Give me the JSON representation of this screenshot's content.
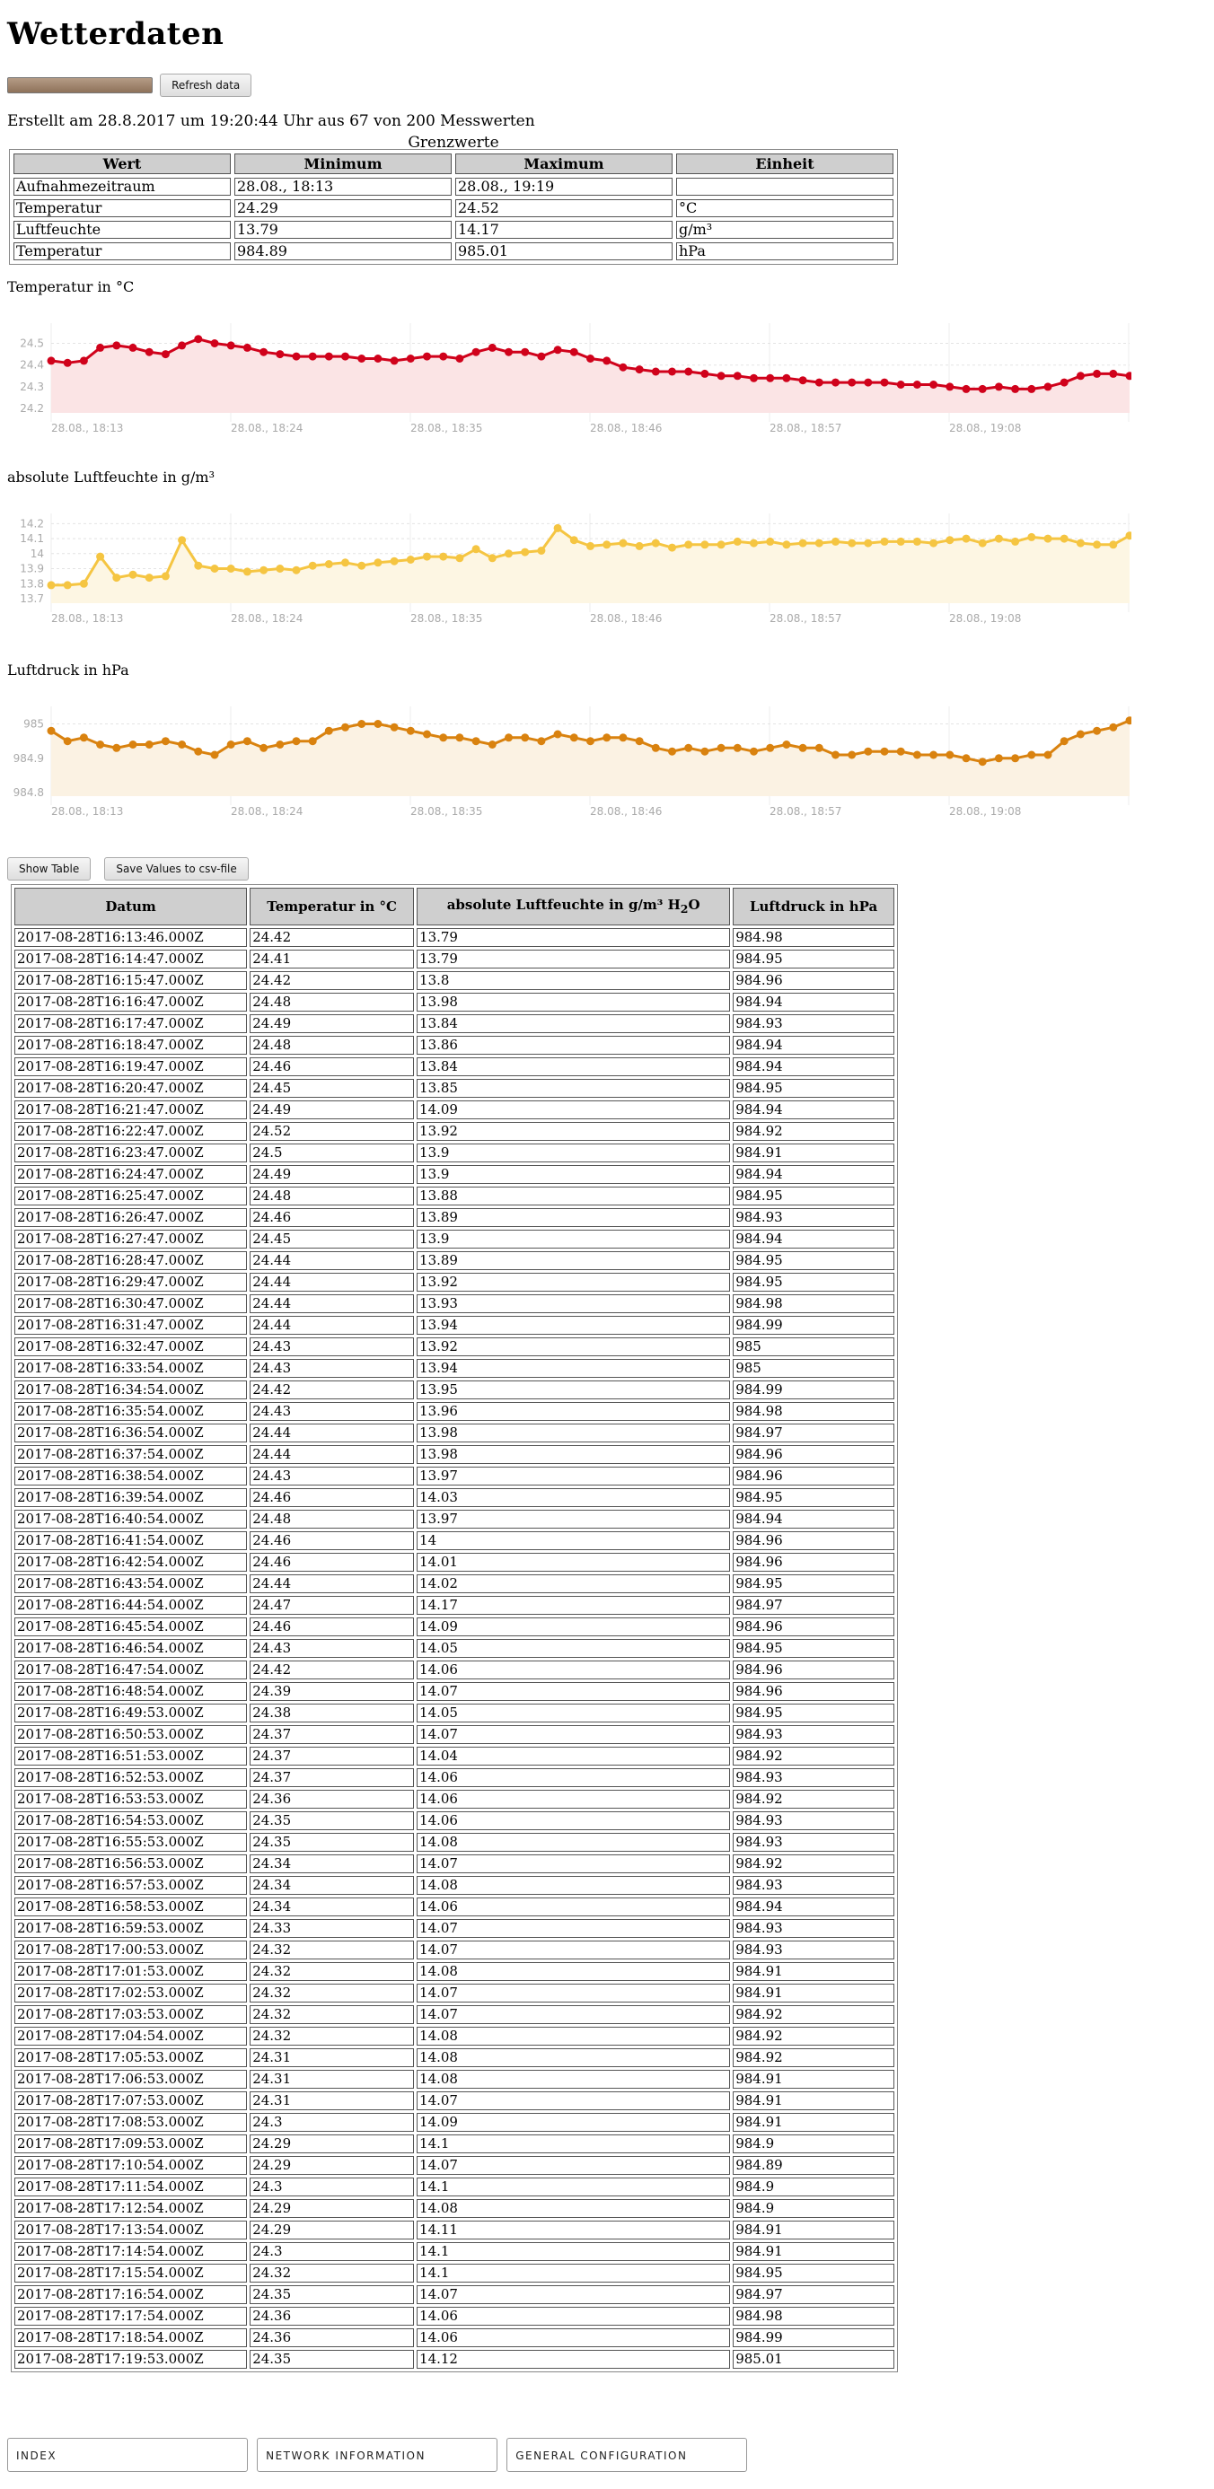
{
  "page": {
    "title": "Wetterdaten",
    "refresh_label": "Refresh data",
    "created": "Erstellt am 28.8.2017 um 19:20:44 Uhr aus 67 von 200 Messwerten"
  },
  "limits": {
    "caption": "Grenzwerte",
    "headers": [
      "Wert",
      "Minimum",
      "Maximum",
      "Einheit"
    ],
    "rows": [
      [
        "Aufnahmezeitraum",
        "28.08., 18:13",
        "28.08., 19:19",
        ""
      ],
      [
        "Temperatur",
        "24.29",
        "24.52",
        "°C"
      ],
      [
        "Luftfeuchte",
        "13.79",
        "14.17",
        "g/m³"
      ],
      [
        "Temperatur",
        "984.89",
        "985.01",
        "hPa"
      ]
    ]
  },
  "chart_data": [
    {
      "type": "line",
      "title": "Temperatur in °C",
      "color": "#d0021b",
      "fill": "#fbe4e5",
      "x_ticks": [
        "28.08., 18:13",
        "28.08., 18:24",
        "28.08., 18:35",
        "28.08., 18:46",
        "28.08., 18:57",
        "28.08., 19:08"
      ],
      "y_ticks": [
        "24.2",
        "24.3",
        "24.4",
        "24.5"
      ],
      "ylim": [
        24.18,
        24.56
      ],
      "grid": true,
      "legend": "none",
      "values": [
        24.42,
        24.41,
        24.42,
        24.48,
        24.49,
        24.48,
        24.46,
        24.45,
        24.49,
        24.52,
        24.5,
        24.49,
        24.48,
        24.46,
        24.45,
        24.44,
        24.44,
        24.44,
        24.44,
        24.43,
        24.43,
        24.42,
        24.43,
        24.44,
        24.44,
        24.43,
        24.46,
        24.48,
        24.46,
        24.46,
        24.44,
        24.47,
        24.46,
        24.43,
        24.42,
        24.39,
        24.38,
        24.37,
        24.37,
        24.37,
        24.36,
        24.35,
        24.35,
        24.34,
        24.34,
        24.34,
        24.33,
        24.32,
        24.32,
        24.32,
        24.32,
        24.32,
        24.31,
        24.31,
        24.31,
        24.3,
        24.29,
        24.29,
        24.3,
        24.29,
        24.29,
        24.3,
        24.32,
        24.35,
        24.36,
        24.36,
        24.35
      ]
    },
    {
      "type": "line",
      "title": "absolute Luftfeuchte in g/m³",
      "color": "#f5c542",
      "fill": "#fdf6e3",
      "x_ticks": [
        "28.08., 18:13",
        "28.08., 18:24",
        "28.08., 18:35",
        "28.08., 18:46",
        "28.08., 18:57",
        "28.08., 19:08"
      ],
      "y_ticks": [
        "13.7",
        "13.8",
        "13.9",
        "14",
        "14.1",
        "14.2"
      ],
      "ylim": [
        13.67,
        14.22
      ],
      "grid": true,
      "legend": "none",
      "values": [
        13.79,
        13.79,
        13.8,
        13.98,
        13.84,
        13.86,
        13.84,
        13.85,
        14.09,
        13.92,
        13.9,
        13.9,
        13.88,
        13.89,
        13.9,
        13.89,
        13.92,
        13.93,
        13.94,
        13.92,
        13.94,
        13.95,
        13.96,
        13.98,
        13.98,
        13.97,
        14.03,
        13.97,
        14,
        14.01,
        14.02,
        14.17,
        14.09,
        14.05,
        14.06,
        14.07,
        14.05,
        14.07,
        14.04,
        14.06,
        14.06,
        14.06,
        14.08,
        14.07,
        14.08,
        14.06,
        14.07,
        14.07,
        14.08,
        14.07,
        14.07,
        14.08,
        14.08,
        14.08,
        14.07,
        14.09,
        14.1,
        14.07,
        14.1,
        14.08,
        14.11,
        14.1,
        14.1,
        14.07,
        14.06,
        14.06,
        14.12
      ]
    },
    {
      "type": "line",
      "title": "Luftdruck in hPa",
      "color": "#d9820f",
      "fill": "#fbf2e3",
      "x_ticks": [
        "28.08., 18:13",
        "28.08., 18:24",
        "28.08., 18:35",
        "28.08., 18:46",
        "28.08., 18:57",
        "28.08., 19:08"
      ],
      "y_ticks": [
        "984.8",
        "984.9",
        "985"
      ],
      "ylim": [
        984.79,
        985.03
      ],
      "grid": true,
      "legend": "none",
      "values": [
        984.98,
        984.95,
        984.96,
        984.94,
        984.93,
        984.94,
        984.94,
        984.95,
        984.94,
        984.92,
        984.91,
        984.94,
        984.95,
        984.93,
        984.94,
        984.95,
        984.95,
        984.98,
        984.99,
        985,
        985,
        984.99,
        984.98,
        984.97,
        984.96,
        984.96,
        984.95,
        984.94,
        984.96,
        984.96,
        984.95,
        984.97,
        984.96,
        984.95,
        984.96,
        984.96,
        984.95,
        984.93,
        984.92,
        984.93,
        984.92,
        984.93,
        984.93,
        984.92,
        984.93,
        984.94,
        984.93,
        984.93,
        984.91,
        984.91,
        984.92,
        984.92,
        984.92,
        984.91,
        984.91,
        984.91,
        984.9,
        984.89,
        984.9,
        984.9,
        984.91,
        984.91,
        984.95,
        984.97,
        984.98,
        984.99,
        985.01
      ]
    }
  ],
  "actions": {
    "show_table": "Show Table",
    "save_csv": "Save Values to csv-file"
  },
  "table": {
    "headers": {
      "datum": "Datum",
      "temp": "Temperatur in °C",
      "humidity_pre": "absolute Luftfeuchte in g/m³ H",
      "humidity_sub": "2",
      "humidity_post": "O",
      "pressure": "Luftdruck in hPa"
    },
    "rows": [
      [
        "2017-08-28T16:13:46.000Z",
        "24.42",
        "13.79",
        "984.98"
      ],
      [
        "2017-08-28T16:14:47.000Z",
        "24.41",
        "13.79",
        "984.95"
      ],
      [
        "2017-08-28T16:15:47.000Z",
        "24.42",
        "13.8",
        "984.96"
      ],
      [
        "2017-08-28T16:16:47.000Z",
        "24.48",
        "13.98",
        "984.94"
      ],
      [
        "2017-08-28T16:17:47.000Z",
        "24.49",
        "13.84",
        "984.93"
      ],
      [
        "2017-08-28T16:18:47.000Z",
        "24.48",
        "13.86",
        "984.94"
      ],
      [
        "2017-08-28T16:19:47.000Z",
        "24.46",
        "13.84",
        "984.94"
      ],
      [
        "2017-08-28T16:20:47.000Z",
        "24.45",
        "13.85",
        "984.95"
      ],
      [
        "2017-08-28T16:21:47.000Z",
        "24.49",
        "14.09",
        "984.94"
      ],
      [
        "2017-08-28T16:22:47.000Z",
        "24.52",
        "13.92",
        "984.92"
      ],
      [
        "2017-08-28T16:23:47.000Z",
        "24.5",
        "13.9",
        "984.91"
      ],
      [
        "2017-08-28T16:24:47.000Z",
        "24.49",
        "13.9",
        "984.94"
      ],
      [
        "2017-08-28T16:25:47.000Z",
        "24.48",
        "13.88",
        "984.95"
      ],
      [
        "2017-08-28T16:26:47.000Z",
        "24.46",
        "13.89",
        "984.93"
      ],
      [
        "2017-08-28T16:27:47.000Z",
        "24.45",
        "13.9",
        "984.94"
      ],
      [
        "2017-08-28T16:28:47.000Z",
        "24.44",
        "13.89",
        "984.95"
      ],
      [
        "2017-08-28T16:29:47.000Z",
        "24.44",
        "13.92",
        "984.95"
      ],
      [
        "2017-08-28T16:30:47.000Z",
        "24.44",
        "13.93",
        "984.98"
      ],
      [
        "2017-08-28T16:31:47.000Z",
        "24.44",
        "13.94",
        "984.99"
      ],
      [
        "2017-08-28T16:32:47.000Z",
        "24.43",
        "13.92",
        "985"
      ],
      [
        "2017-08-28T16:33:54.000Z",
        "24.43",
        "13.94",
        "985"
      ],
      [
        "2017-08-28T16:34:54.000Z",
        "24.42",
        "13.95",
        "984.99"
      ],
      [
        "2017-08-28T16:35:54.000Z",
        "24.43",
        "13.96",
        "984.98"
      ],
      [
        "2017-08-28T16:36:54.000Z",
        "24.44",
        "13.98",
        "984.97"
      ],
      [
        "2017-08-28T16:37:54.000Z",
        "24.44",
        "13.98",
        "984.96"
      ],
      [
        "2017-08-28T16:38:54.000Z",
        "24.43",
        "13.97",
        "984.96"
      ],
      [
        "2017-08-28T16:39:54.000Z",
        "24.46",
        "14.03",
        "984.95"
      ],
      [
        "2017-08-28T16:40:54.000Z",
        "24.48",
        "13.97",
        "984.94"
      ],
      [
        "2017-08-28T16:41:54.000Z",
        "24.46",
        "14",
        "984.96"
      ],
      [
        "2017-08-28T16:42:54.000Z",
        "24.46",
        "14.01",
        "984.96"
      ],
      [
        "2017-08-28T16:43:54.000Z",
        "24.44",
        "14.02",
        "984.95"
      ],
      [
        "2017-08-28T16:44:54.000Z",
        "24.47",
        "14.17",
        "984.97"
      ],
      [
        "2017-08-28T16:45:54.000Z",
        "24.46",
        "14.09",
        "984.96"
      ],
      [
        "2017-08-28T16:46:54.000Z",
        "24.43",
        "14.05",
        "984.95"
      ],
      [
        "2017-08-28T16:47:54.000Z",
        "24.42",
        "14.06",
        "984.96"
      ],
      [
        "2017-08-28T16:48:54.000Z",
        "24.39",
        "14.07",
        "984.96"
      ],
      [
        "2017-08-28T16:49:53.000Z",
        "24.38",
        "14.05",
        "984.95"
      ],
      [
        "2017-08-28T16:50:53.000Z",
        "24.37",
        "14.07",
        "984.93"
      ],
      [
        "2017-08-28T16:51:53.000Z",
        "24.37",
        "14.04",
        "984.92"
      ],
      [
        "2017-08-28T16:52:53.000Z",
        "24.37",
        "14.06",
        "984.93"
      ],
      [
        "2017-08-28T16:53:53.000Z",
        "24.36",
        "14.06",
        "984.92"
      ],
      [
        "2017-08-28T16:54:53.000Z",
        "24.35",
        "14.06",
        "984.93"
      ],
      [
        "2017-08-28T16:55:53.000Z",
        "24.35",
        "14.08",
        "984.93"
      ],
      [
        "2017-08-28T16:56:53.000Z",
        "24.34",
        "14.07",
        "984.92"
      ],
      [
        "2017-08-28T16:57:53.000Z",
        "24.34",
        "14.08",
        "984.93"
      ],
      [
        "2017-08-28T16:58:53.000Z",
        "24.34",
        "14.06",
        "984.94"
      ],
      [
        "2017-08-28T16:59:53.000Z",
        "24.33",
        "14.07",
        "984.93"
      ],
      [
        "2017-08-28T17:00:53.000Z",
        "24.32",
        "14.07",
        "984.93"
      ],
      [
        "2017-08-28T17:01:53.000Z",
        "24.32",
        "14.08",
        "984.91"
      ],
      [
        "2017-08-28T17:02:53.000Z",
        "24.32",
        "14.07",
        "984.91"
      ],
      [
        "2017-08-28T17:03:53.000Z",
        "24.32",
        "14.07",
        "984.92"
      ],
      [
        "2017-08-28T17:04:54.000Z",
        "24.32",
        "14.08",
        "984.92"
      ],
      [
        "2017-08-28T17:05:53.000Z",
        "24.31",
        "14.08",
        "984.92"
      ],
      [
        "2017-08-28T17:06:53.000Z",
        "24.31",
        "14.08",
        "984.91"
      ],
      [
        "2017-08-28T17:07:53.000Z",
        "24.31",
        "14.07",
        "984.91"
      ],
      [
        "2017-08-28T17:08:53.000Z",
        "24.3",
        "14.09",
        "984.91"
      ],
      [
        "2017-08-28T17:09:53.000Z",
        "24.29",
        "14.1",
        "984.9"
      ],
      [
        "2017-08-28T17:10:54.000Z",
        "24.29",
        "14.07",
        "984.89"
      ],
      [
        "2017-08-28T17:11:54.000Z",
        "24.3",
        "14.1",
        "984.9"
      ],
      [
        "2017-08-28T17:12:54.000Z",
        "24.29",
        "14.08",
        "984.9"
      ],
      [
        "2017-08-28T17:13:54.000Z",
        "24.29",
        "14.11",
        "984.91"
      ],
      [
        "2017-08-28T17:14:54.000Z",
        "24.3",
        "14.1",
        "984.91"
      ],
      [
        "2017-08-28T17:15:54.000Z",
        "24.32",
        "14.1",
        "984.95"
      ],
      [
        "2017-08-28T17:16:54.000Z",
        "24.35",
        "14.07",
        "984.97"
      ],
      [
        "2017-08-28T17:17:54.000Z",
        "24.36",
        "14.06",
        "984.98"
      ],
      [
        "2017-08-28T17:18:54.000Z",
        "24.36",
        "14.06",
        "984.99"
      ],
      [
        "2017-08-28T17:19:53.000Z",
        "24.35",
        "14.12",
        "985.01"
      ]
    ]
  },
  "nav": {
    "index": "INDEX",
    "network": "NETWORK INFORMATION",
    "general": "GENERAL CONFIGURATION"
  }
}
